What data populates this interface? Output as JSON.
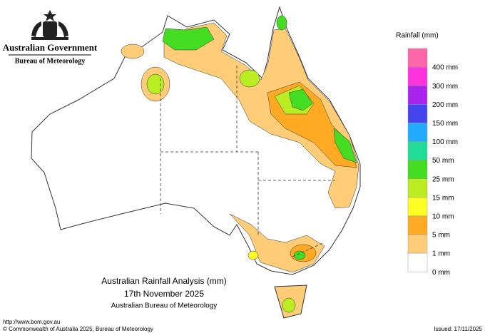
{
  "header": {
    "government": "Australian Government",
    "agency": "Bureau of Meteorology"
  },
  "legend": {
    "title": "Rainfall (mm)",
    "items": [
      {
        "label": "400 mm",
        "color": "#ff66aa"
      },
      {
        "label": "300 mm",
        "color": "#ff33dd"
      },
      {
        "label": "200 mm",
        "color": "#aa22ee"
      },
      {
        "label": "150 mm",
        "color": "#4444ee"
      },
      {
        "label": "100 mm",
        "color": "#22aaff"
      },
      {
        "label": "50 mm",
        "color": "#22dd99"
      },
      {
        "label": "25 mm",
        "color": "#44dd22"
      },
      {
        "label": "15 mm",
        "color": "#bbee22"
      },
      {
        "label": "10 mm",
        "color": "#ffff22"
      },
      {
        "label": "5 mm",
        "color": "#ffaa22"
      },
      {
        "label": "1 mm",
        "color": "#ffcc77"
      },
      {
        "label": "0 mm",
        "color": "#ffffff"
      }
    ]
  },
  "map_title": {
    "line1": "Australian Rainfall Analysis (mm)",
    "line2": "17th November 2025",
    "line3": "Australian Bureau of Meteorology"
  },
  "footer": {
    "url": "http://www.bom.gov.au",
    "copyright": "© Commonwealth of Australia 2025, Bureau of Meteorology",
    "issued": "Issued: 17/11/2025"
  }
}
